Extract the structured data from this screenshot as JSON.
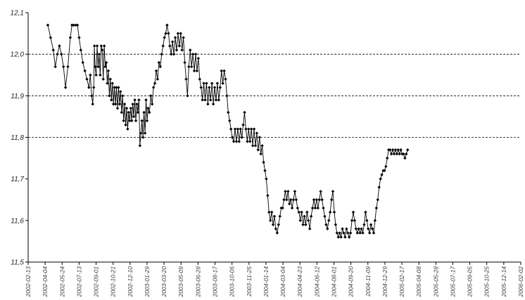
{
  "chart_data": {
    "type": "line",
    "title": "",
    "xlabel": "",
    "ylabel": "",
    "ylim": [
      11.5,
      12.1
    ],
    "yticks": [
      "12,1",
      "12,0",
      "11,9",
      "11,8",
      "11,7",
      "11,6",
      "11,5"
    ],
    "ytick_values": [
      12.1,
      12.0,
      11.9,
      11.8,
      11.7,
      11.6,
      11.5
    ],
    "gridlines": [
      12.0,
      11.9,
      11.8
    ],
    "grid_style": "dashed",
    "xtick_labels": [
      "2002-02-13",
      "2002-04-04",
      "2002-05-24",
      "2002-07-13",
      "2002-09-01",
      "2002-10-21",
      "2002-12-10",
      "2003-01-29",
      "2003-03-20",
      "2003-05-09",
      "2003-06-28",
      "2003-08-17",
      "2003-10-06",
      "2003-11-25",
      "2004-01-14",
      "2004-03-04",
      "2004-04-23",
      "2004-06-12",
      "2004-08-01",
      "2004-09-20",
      "2004-11-09",
      "2004-12-29",
      "2005-02-17",
      "2005-04-08",
      "2005-05-28",
      "2005-07-17",
      "2005-09-05",
      "2005-10-25",
      "2005-12-14",
      "2006-02-02"
    ],
    "series": [
      {
        "color": "#000000",
        "marker": "diamond",
        "points": [
          [
            "2002-04-12",
            12.07
          ],
          [
            "2002-04-20",
            12.04
          ],
          [
            "2002-04-28",
            12.01
          ],
          [
            "2002-05-04",
            11.97
          ],
          [
            "2002-05-10",
            12.0
          ],
          [
            "2002-05-16",
            12.02
          ],
          [
            "2002-05-22",
            12.0
          ],
          [
            "2002-05-28",
            11.97
          ],
          [
            "2002-06-03",
            11.92
          ],
          [
            "2002-06-10",
            11.97
          ],
          [
            "2002-06-17",
            12.04
          ],
          [
            "2002-06-22",
            12.07
          ],
          [
            "2002-06-27",
            12.07
          ],
          [
            "2002-07-03",
            12.07
          ],
          [
            "2002-07-08",
            12.07
          ],
          [
            "2002-07-13",
            12.04
          ],
          [
            "2002-07-18",
            12.01
          ],
          [
            "2002-07-24",
            11.98
          ],
          [
            "2002-07-30",
            11.96
          ],
          [
            "2002-08-05",
            11.94
          ],
          [
            "2002-08-11",
            11.92
          ],
          [
            "2002-08-15",
            11.95
          ],
          [
            "2002-08-19",
            11.9
          ],
          [
            "2002-08-22",
            11.88
          ],
          [
            "2002-08-25",
            11.92
          ],
          [
            "2002-08-27",
            12.02
          ],
          [
            "2002-08-29",
            11.97
          ],
          [
            "2002-09-01",
            11.95
          ],
          [
            "2002-09-04",
            12.02
          ],
          [
            "2002-09-07",
            11.97
          ],
          [
            "2002-09-10",
            12.0
          ],
          [
            "2002-09-13",
            11.95
          ],
          [
            "2002-09-16",
            12.02
          ],
          [
            "2002-09-19",
            12.01
          ],
          [
            "2002-09-22",
            11.94
          ],
          [
            "2002-09-25",
            12.02
          ],
          [
            "2002-09-28",
            11.97
          ],
          [
            "2002-10-01",
            11.98
          ],
          [
            "2002-10-04",
            11.93
          ],
          [
            "2002-10-07",
            11.96
          ],
          [
            "2002-10-10",
            11.9
          ],
          [
            "2002-10-13",
            11.94
          ],
          [
            "2002-10-16",
            11.89
          ],
          [
            "2002-10-19",
            11.93
          ],
          [
            "2002-10-22",
            11.88
          ],
          [
            "2002-10-25",
            11.92
          ],
          [
            "2002-10-28",
            11.88
          ],
          [
            "2002-10-31",
            11.92
          ],
          [
            "2002-11-03",
            11.87
          ],
          [
            "2002-11-06",
            11.92
          ],
          [
            "2002-11-09",
            11.88
          ],
          [
            "2002-11-12",
            11.91
          ],
          [
            "2002-11-15",
            11.86
          ],
          [
            "2002-11-18",
            11.9
          ],
          [
            "2002-11-21",
            11.84
          ],
          [
            "2002-11-24",
            11.88
          ],
          [
            "2002-11-27",
            11.83
          ],
          [
            "2002-11-30",
            11.87
          ],
          [
            "2002-12-03",
            11.82
          ],
          [
            "2002-12-06",
            11.86
          ],
          [
            "2002-12-09",
            11.84
          ],
          [
            "2002-12-12",
            11.87
          ],
          [
            "2002-12-15",
            11.84
          ],
          [
            "2002-12-18",
            11.88
          ],
          [
            "2002-12-21",
            11.85
          ],
          [
            "2002-12-24",
            11.89
          ],
          [
            "2002-12-27",
            11.84
          ],
          [
            "2002-12-30",
            11.88
          ],
          [
            "2003-01-02",
            11.86
          ],
          [
            "2003-01-05",
            11.89
          ],
          [
            "2003-01-08",
            11.78
          ],
          [
            "2003-01-11",
            11.81
          ],
          [
            "2003-01-14",
            11.84
          ],
          [
            "2003-01-17",
            11.8
          ],
          [
            "2003-01-20",
            11.86
          ],
          [
            "2003-01-23",
            11.81
          ],
          [
            "2003-01-26",
            11.89
          ],
          [
            "2003-01-29",
            11.84
          ],
          [
            "2003-02-01",
            11.87
          ],
          [
            "2003-02-05",
            11.86
          ],
          [
            "2003-02-09",
            11.9
          ],
          [
            "2003-02-13",
            11.88
          ],
          [
            "2003-02-17",
            11.92
          ],
          [
            "2003-02-21",
            11.93
          ],
          [
            "2003-02-25",
            11.96
          ],
          [
            "2003-03-01",
            11.94
          ],
          [
            "2003-03-05",
            11.98
          ],
          [
            "2003-03-09",
            11.97
          ],
          [
            "2003-03-13",
            12.0
          ],
          [
            "2003-03-17",
            12.02
          ],
          [
            "2003-03-21",
            12.04
          ],
          [
            "2003-03-25",
            12.05
          ],
          [
            "2003-03-29",
            12.07
          ],
          [
            "2003-04-02",
            12.05
          ],
          [
            "2003-04-06",
            12.02
          ],
          [
            "2003-04-10",
            12.0
          ],
          [
            "2003-04-14",
            12.03
          ],
          [
            "2003-04-18",
            12.0
          ],
          [
            "2003-04-22",
            12.04
          ],
          [
            "2003-04-26",
            12.01
          ],
          [
            "2003-04-30",
            12.05
          ],
          [
            "2003-05-04",
            12.02
          ],
          [
            "2003-05-08",
            12.05
          ],
          [
            "2003-05-12",
            12.01
          ],
          [
            "2003-05-16",
            12.04
          ],
          [
            "2003-05-20",
            11.98
          ],
          [
            "2003-05-24",
            11.94
          ],
          [
            "2003-05-28",
            11.9
          ],
          [
            "2003-06-01",
            11.97
          ],
          [
            "2003-06-05",
            12.01
          ],
          [
            "2003-06-09",
            11.97
          ],
          [
            "2003-06-13",
            12.0
          ],
          [
            "2003-06-17",
            11.96
          ],
          [
            "2003-06-21",
            12.0
          ],
          [
            "2003-06-25",
            11.96
          ],
          [
            "2003-06-29",
            11.99
          ],
          [
            "2003-07-03",
            11.94
          ],
          [
            "2003-07-07",
            11.92
          ],
          [
            "2003-07-11",
            11.89
          ],
          [
            "2003-07-15",
            11.93
          ],
          [
            "2003-07-19",
            11.89
          ],
          [
            "2003-07-23",
            11.93
          ],
          [
            "2003-07-27",
            11.88
          ],
          [
            "2003-07-31",
            11.92
          ],
          [
            "2003-08-04",
            11.89
          ],
          [
            "2003-08-08",
            11.93
          ],
          [
            "2003-08-12",
            11.88
          ],
          [
            "2003-08-16",
            11.92
          ],
          [
            "2003-08-20",
            11.89
          ],
          [
            "2003-08-24",
            11.93
          ],
          [
            "2003-08-28",
            11.89
          ],
          [
            "2003-09-01",
            11.92
          ],
          [
            "2003-09-05",
            11.96
          ],
          [
            "2003-09-09",
            11.93
          ],
          [
            "2003-09-13",
            11.96
          ],
          [
            "2003-09-17",
            11.94
          ],
          [
            "2003-09-21",
            11.9
          ],
          [
            "2003-09-25",
            11.86
          ],
          [
            "2003-09-29",
            11.84
          ],
          [
            "2003-10-03",
            11.82
          ],
          [
            "2003-10-07",
            11.8
          ],
          [
            "2003-10-11",
            11.79
          ],
          [
            "2003-10-15",
            11.82
          ],
          [
            "2003-10-19",
            11.79
          ],
          [
            "2003-10-23",
            11.82
          ],
          [
            "2003-10-27",
            11.79
          ],
          [
            "2003-10-31",
            11.82
          ],
          [
            "2003-11-04",
            11.8
          ],
          [
            "2003-11-08",
            11.83
          ],
          [
            "2003-11-12",
            11.86
          ],
          [
            "2003-11-16",
            11.82
          ],
          [
            "2003-11-20",
            11.79
          ],
          [
            "2003-11-24",
            11.82
          ],
          [
            "2003-11-28",
            11.79
          ],
          [
            "2003-12-02",
            11.82
          ],
          [
            "2003-12-06",
            11.78
          ],
          [
            "2003-12-10",
            11.82
          ],
          [
            "2003-12-14",
            11.78
          ],
          [
            "2003-12-18",
            11.81
          ],
          [
            "2003-12-22",
            11.77
          ],
          [
            "2003-12-26",
            11.8
          ],
          [
            "2003-12-30",
            11.76
          ],
          [
            "2004-01-03",
            11.78
          ],
          [
            "2004-01-07",
            11.74
          ],
          [
            "2004-01-11",
            11.72
          ],
          [
            "2004-01-15",
            11.7
          ],
          [
            "2004-01-19",
            11.66
          ],
          [
            "2004-01-23",
            11.62
          ],
          [
            "2004-01-27",
            11.6
          ],
          [
            "2004-01-31",
            11.62
          ],
          [
            "2004-02-04",
            11.59
          ],
          [
            "2004-02-08",
            11.61
          ],
          [
            "2004-02-12",
            11.58
          ],
          [
            "2004-02-16",
            11.57
          ],
          [
            "2004-02-20",
            11.59
          ],
          [
            "2004-02-24",
            11.61
          ],
          [
            "2004-02-28",
            11.63
          ],
          [
            "2004-03-03",
            11.63
          ],
          [
            "2004-03-07",
            11.65
          ],
          [
            "2004-03-11",
            11.67
          ],
          [
            "2004-03-15",
            11.65
          ],
          [
            "2004-03-19",
            11.67
          ],
          [
            "2004-03-23",
            11.64
          ],
          [
            "2004-03-27",
            11.65
          ],
          [
            "2004-03-31",
            11.63
          ],
          [
            "2004-04-04",
            11.65
          ],
          [
            "2004-04-08",
            11.67
          ],
          [
            "2004-04-12",
            11.65
          ],
          [
            "2004-04-16",
            11.63
          ],
          [
            "2004-04-20",
            11.62
          ],
          [
            "2004-04-24",
            11.6
          ],
          [
            "2004-04-28",
            11.62
          ],
          [
            "2004-05-02",
            11.59
          ],
          [
            "2004-05-06",
            11.61
          ],
          [
            "2004-05-10",
            11.59
          ],
          [
            "2004-05-14",
            11.62
          ],
          [
            "2004-05-18",
            11.6
          ],
          [
            "2004-05-22",
            11.58
          ],
          [
            "2004-05-26",
            11.61
          ],
          [
            "2004-05-30",
            11.63
          ],
          [
            "2004-06-03",
            11.65
          ],
          [
            "2004-06-07",
            11.63
          ],
          [
            "2004-06-11",
            11.65
          ],
          [
            "2004-06-15",
            11.63
          ],
          [
            "2004-06-19",
            11.65
          ],
          [
            "2004-06-23",
            11.67
          ],
          [
            "2004-06-27",
            11.65
          ],
          [
            "2004-07-01",
            11.63
          ],
          [
            "2004-07-05",
            11.61
          ],
          [
            "2004-07-09",
            11.59
          ],
          [
            "2004-07-13",
            11.58
          ],
          [
            "2004-07-17",
            11.6
          ],
          [
            "2004-07-21",
            11.62
          ],
          [
            "2004-07-25",
            11.65
          ],
          [
            "2004-07-29",
            11.67
          ],
          [
            "2004-08-02",
            11.62
          ],
          [
            "2004-08-06",
            11.59
          ],
          [
            "2004-08-10",
            11.57
          ],
          [
            "2004-08-14",
            11.56
          ],
          [
            "2004-08-18",
            11.57
          ],
          [
            "2004-08-22",
            11.56
          ],
          [
            "2004-08-26",
            11.58
          ],
          [
            "2004-08-30",
            11.57
          ],
          [
            "2004-09-03",
            11.56
          ],
          [
            "2004-09-07",
            11.58
          ],
          [
            "2004-09-11",
            11.57
          ],
          [
            "2004-09-15",
            11.56
          ],
          [
            "2004-09-19",
            11.57
          ],
          [
            "2004-09-23",
            11.6
          ],
          [
            "2004-09-27",
            11.62
          ],
          [
            "2004-10-01",
            11.6
          ],
          [
            "2004-10-05",
            11.58
          ],
          [
            "2004-10-09",
            11.57
          ],
          [
            "2004-10-13",
            11.58
          ],
          [
            "2004-10-17",
            11.57
          ],
          [
            "2004-10-21",
            11.58
          ],
          [
            "2004-10-25",
            11.57
          ],
          [
            "2004-10-29",
            11.59
          ],
          [
            "2004-11-02",
            11.62
          ],
          [
            "2004-11-06",
            11.6
          ],
          [
            "2004-11-10",
            11.58
          ],
          [
            "2004-11-14",
            11.57
          ],
          [
            "2004-11-18",
            11.59
          ],
          [
            "2004-11-22",
            11.58
          ],
          [
            "2004-11-26",
            11.57
          ],
          [
            "2004-11-30",
            11.6
          ],
          [
            "2004-12-04",
            11.63
          ],
          [
            "2004-12-08",
            11.65
          ],
          [
            "2004-12-12",
            11.68
          ],
          [
            "2004-12-16",
            11.7
          ],
          [
            "2004-12-20",
            11.71
          ],
          [
            "2004-12-24",
            11.72
          ],
          [
            "2004-12-28",
            11.72
          ],
          [
            "2005-01-01",
            11.73
          ],
          [
            "2005-01-05",
            11.75
          ],
          [
            "2005-01-09",
            11.77
          ],
          [
            "2005-01-13",
            11.77
          ],
          [
            "2005-01-17",
            11.76
          ],
          [
            "2005-01-21",
            11.77
          ],
          [
            "2005-01-25",
            11.76
          ],
          [
            "2005-01-29",
            11.77
          ],
          [
            "2005-02-02",
            11.76
          ],
          [
            "2005-02-06",
            11.77
          ],
          [
            "2005-02-10",
            11.76
          ],
          [
            "2005-02-14",
            11.77
          ],
          [
            "2005-02-18",
            11.76
          ],
          [
            "2005-02-22",
            11.76
          ],
          [
            "2005-02-26",
            11.75
          ],
          [
            "2005-03-02",
            11.76
          ],
          [
            "2005-03-06",
            11.77
          ]
        ]
      }
    ]
  }
}
